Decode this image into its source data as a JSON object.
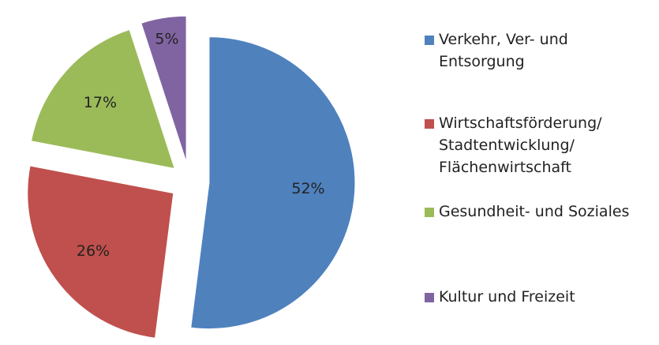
{
  "chart_data": {
    "type": "pie",
    "categories": [
      "Verkehr, Ver- und Entsorgung",
      "Wirtschaftsförderung/ Stadtentwicklung/ Flächenwirtschaft",
      "Gesundheit- und Soziales",
      "Kultur und Freizeit"
    ],
    "values": [
      52,
      26,
      17,
      5
    ],
    "value_labels": [
      "52%",
      "26%",
      "17%",
      "5%"
    ],
    "colors": [
      "#4f81bd",
      "#c0504d",
      "#9bbb59",
      "#8064a2"
    ],
    "exploded": true,
    "legend": "right"
  }
}
